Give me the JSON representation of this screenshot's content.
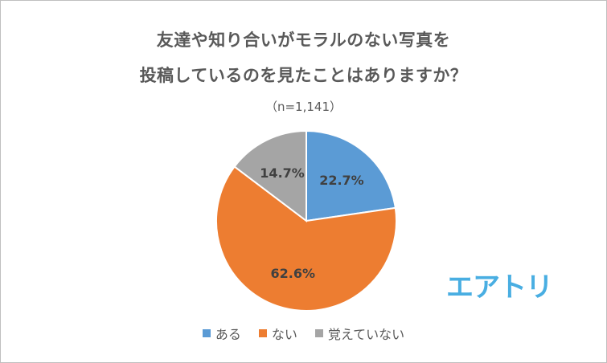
{
  "title_line1": "友達や知り合いがモラルのない写真を",
  "title_line2": "投稿しているのを見たことはありますか？",
  "subtitle": "（n=1,141）",
  "logo_text": "エアトリ",
  "colors": {
    "aru": "#5b9bd5",
    "nai": "#ed7d31",
    "oboete_inai": "#a5a5a5",
    "text": "#595959",
    "logo": "#49aee2"
  },
  "chart_data": {
    "type": "pie",
    "title": "友達や知り合いがモラルのない写真を投稿しているのを見たことはありますか？",
    "categories": [
      "ある",
      "ない",
      "覚えていない"
    ],
    "values": [
      22.7,
      62.6,
      14.7
    ],
    "labels": [
      "22.7%",
      "62.6%",
      "14.7%"
    ],
    "colors": [
      "#5b9bd5",
      "#ed7d31",
      "#a5a5a5"
    ],
    "legend_position": "bottom"
  }
}
